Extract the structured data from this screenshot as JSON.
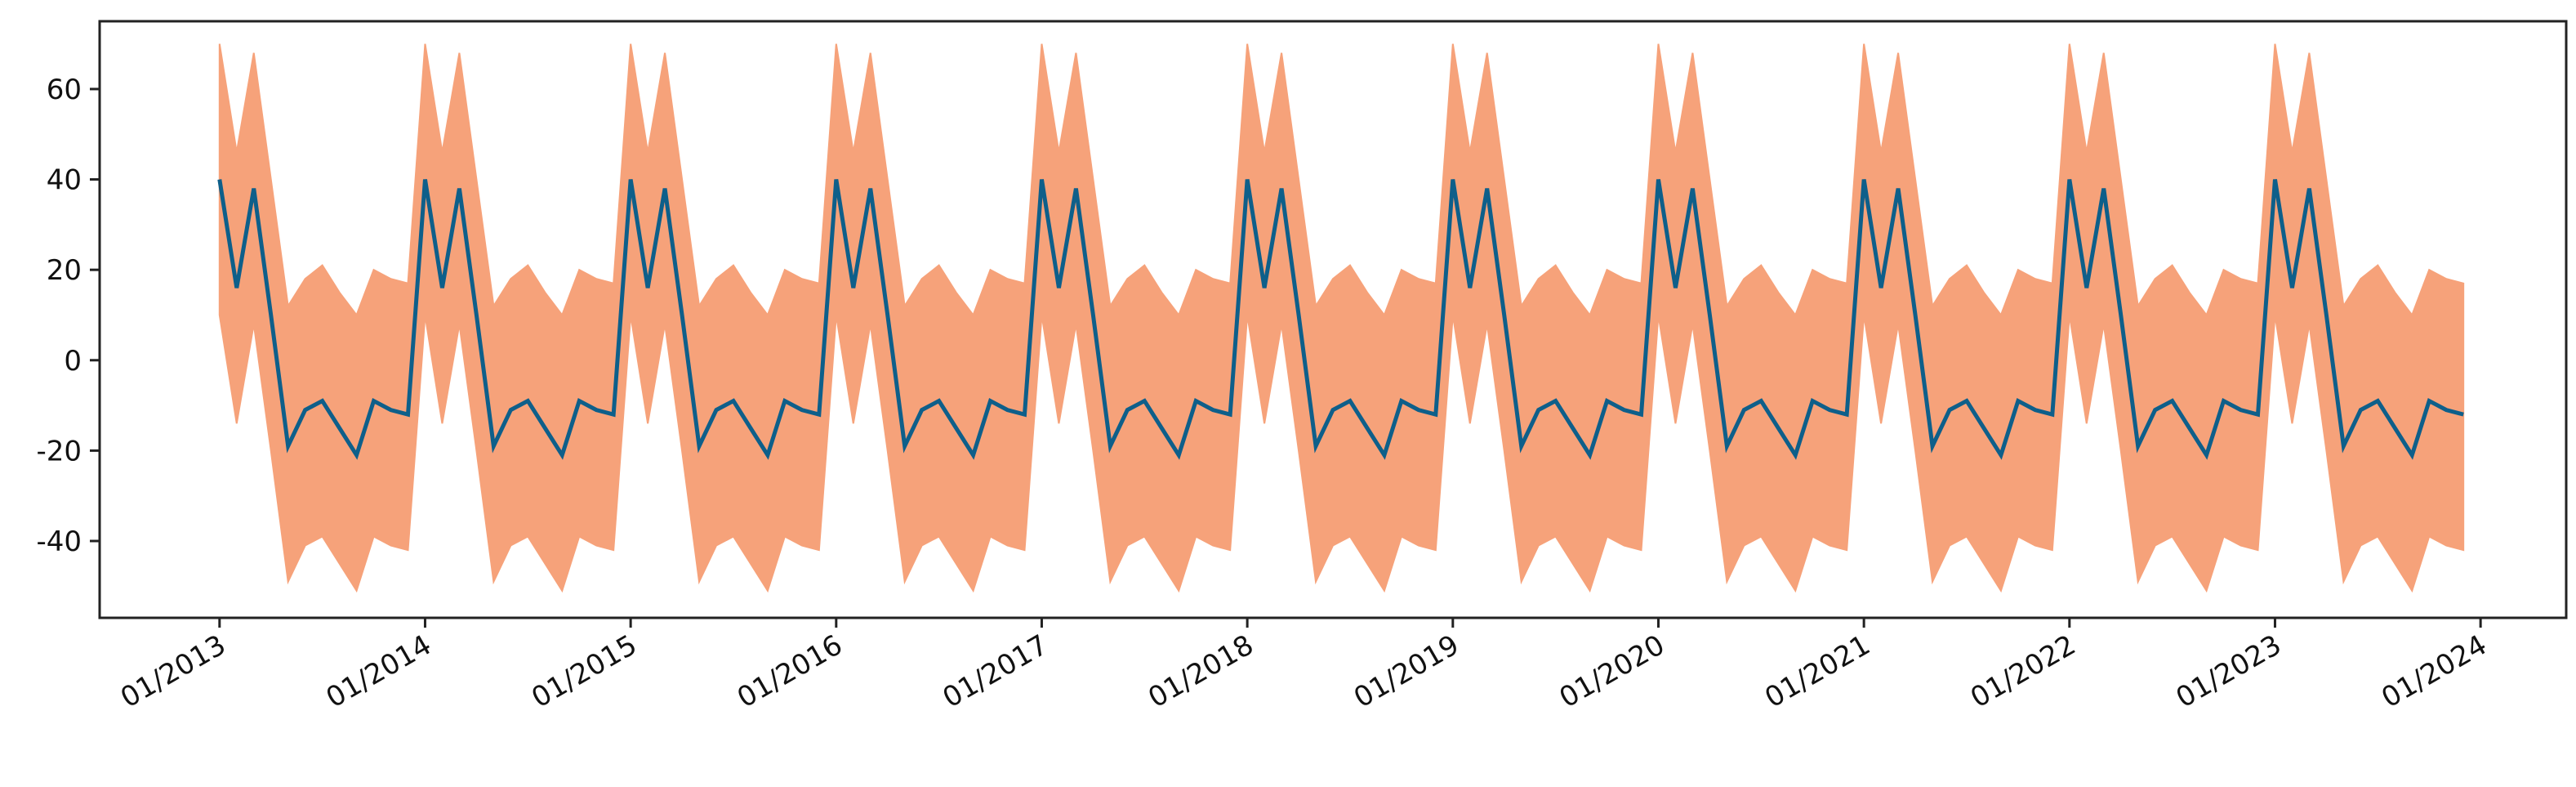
{
  "chart_data": {
    "type": "area",
    "title": "",
    "xlabel": "",
    "ylabel": "",
    "ylim": [
      -57,
      75
    ],
    "y_ticks": [
      60,
      40,
      20,
      0,
      -20,
      -40
    ],
    "x_tick_labels": [
      "01/2013",
      "01/2014",
      "01/2015",
      "01/2016",
      "01/2017",
      "01/2018",
      "01/2019",
      "01/2020",
      "01/2021",
      "01/2022",
      "01/2023",
      "01/2024"
    ],
    "x_range": [
      "2012-06",
      "2024-06"
    ],
    "grid": false,
    "legend": "none",
    "colors": {
      "line": "#0e5f8a",
      "band": "#f6a27a",
      "axis": "#222222"
    },
    "series": [
      {
        "type": "line",
        "x": [
          "2013-01",
          "2013-02",
          "2013-03",
          "2013-04",
          "2013-05",
          "2013-06",
          "2013-07",
          "2013-08",
          "2013-09",
          "2013-10",
          "2013-11",
          "2013-12",
          "2014-01",
          "2014-02",
          "2014-03",
          "2014-04",
          "2014-05",
          "2014-06",
          "2014-07",
          "2014-08",
          "2014-09",
          "2014-10",
          "2014-11",
          "2014-12",
          "2015-01",
          "2015-02",
          "2015-03",
          "2015-04",
          "2015-05",
          "2015-06",
          "2015-07",
          "2015-08",
          "2015-09",
          "2015-10",
          "2015-11",
          "2015-12",
          "2016-01",
          "2016-02",
          "2016-03",
          "2016-04",
          "2016-05",
          "2016-06",
          "2016-07",
          "2016-08",
          "2016-09",
          "2016-10",
          "2016-11",
          "2016-12",
          "2017-01",
          "2017-02",
          "2017-03",
          "2017-04",
          "2017-05",
          "2017-06",
          "2017-07",
          "2017-08",
          "2017-09",
          "2017-10",
          "2017-11",
          "2017-12",
          "2018-01",
          "2018-02",
          "2018-03",
          "2018-04",
          "2018-05",
          "2018-06",
          "2018-07",
          "2018-08",
          "2018-09",
          "2018-10",
          "2018-11",
          "2018-12",
          "2019-01",
          "2019-02",
          "2019-03",
          "2019-04",
          "2019-05",
          "2019-06",
          "2019-07",
          "2019-08",
          "2019-09",
          "2019-10",
          "2019-11",
          "2019-12",
          "2020-01",
          "2020-02",
          "2020-03",
          "2020-04",
          "2020-05",
          "2020-06",
          "2020-07",
          "2020-08",
          "2020-09",
          "2020-10",
          "2020-11",
          "2020-12",
          "2021-01",
          "2021-02",
          "2021-03",
          "2021-04",
          "2021-05",
          "2021-06",
          "2021-07",
          "2021-08",
          "2021-09",
          "2021-10",
          "2021-11",
          "2021-12",
          "2022-01",
          "2022-02",
          "2022-03",
          "2022-04",
          "2022-05",
          "2022-06",
          "2022-07",
          "2022-08",
          "2022-09",
          "2022-10",
          "2022-11",
          "2022-12",
          "2023-01",
          "2023-02",
          "2023-03",
          "2023-04",
          "2023-05",
          "2023-06",
          "2023-07",
          "2023-08",
          "2023-09",
          "2023-10",
          "2023-11",
          "2023-12"
        ],
        "values": [
          40,
          16,
          38,
          10,
          -19,
          -11,
          -9,
          -15,
          -21,
          -9,
          -11,
          -12,
          40,
          16,
          38,
          10,
          -19,
          -11,
          -9,
          -15,
          -21,
          -9,
          -11,
          -12,
          40,
          16,
          38,
          10,
          -19,
          -11,
          -9,
          -15,
          -21,
          -9,
          -11,
          -12,
          40,
          16,
          38,
          10,
          -19,
          -11,
          -9,
          -15,
          -21,
          -9,
          -11,
          -12,
          40,
          16,
          38,
          10,
          -19,
          -11,
          -9,
          -15,
          -21,
          -9,
          -11,
          -12,
          40,
          16,
          38,
          10,
          -19,
          -11,
          -9,
          -15,
          -21,
          -9,
          -11,
          -12,
          40,
          16,
          38,
          10,
          -19,
          -11,
          -9,
          -15,
          -21,
          -9,
          -11,
          -12,
          40,
          16,
          38,
          10,
          -19,
          -11,
          -9,
          -15,
          -21,
          -9,
          -11,
          -12,
          40,
          16,
          38,
          10,
          -19,
          -11,
          -9,
          -15,
          -21,
          -9,
          -11,
          -12,
          40,
          16,
          38,
          10,
          -19,
          -11,
          -9,
          -15,
          -21,
          -9,
          -11,
          -12,
          40,
          16,
          38,
          10,
          -19,
          -11,
          -9,
          -15,
          -21,
          -9,
          -11,
          -12
        ]
      },
      {
        "type": "band",
        "upper": [
          70,
          46,
          68,
          40,
          12,
          18,
          21,
          15,
          10,
          20,
          18,
          17,
          70,
          46,
          68,
          40,
          12,
          18,
          21,
          15,
          10,
          20,
          18,
          17,
          70,
          46,
          68,
          40,
          12,
          18,
          21,
          15,
          10,
          20,
          18,
          17,
          70,
          46,
          68,
          40,
          12,
          18,
          21,
          15,
          10,
          20,
          18,
          17,
          70,
          46,
          68,
          40,
          12,
          18,
          21,
          15,
          10,
          20,
          18,
          17,
          70,
          46,
          68,
          40,
          12,
          18,
          21,
          15,
          10,
          20,
          18,
          17,
          70,
          46,
          68,
          40,
          12,
          18,
          21,
          15,
          10,
          20,
          18,
          17,
          70,
          46,
          68,
          40,
          12,
          18,
          21,
          15,
          10,
          20,
          18,
          17,
          70,
          46,
          68,
          40,
          12,
          18,
          21,
          15,
          10,
          20,
          18,
          17,
          70,
          46,
          68,
          40,
          12,
          18,
          21,
          15,
          10,
          20,
          18,
          17,
          70,
          46,
          68,
          40,
          12,
          18,
          21,
          15,
          10,
          20,
          18,
          17
        ],
        "lower": [
          10,
          -14,
          8,
          -20,
          -49,
          -41,
          -39,
          -45,
          -51,
          -39,
          -41,
          -42,
          10,
          -14,
          8,
          -20,
          -49,
          -41,
          -39,
          -45,
          -51,
          -39,
          -41,
          -42,
          10,
          -14,
          8,
          -20,
          -49,
          -41,
          -39,
          -45,
          -51,
          -39,
          -41,
          -42,
          10,
          -14,
          8,
          -20,
          -49,
          -41,
          -39,
          -45,
          -51,
          -39,
          -41,
          -42,
          10,
          -14,
          8,
          -20,
          -49,
          -41,
          -39,
          -45,
          -51,
          -39,
          -41,
          -42,
          10,
          -14,
          8,
          -20,
          -49,
          -41,
          -39,
          -45,
          -51,
          -39,
          -41,
          -42,
          10,
          -14,
          8,
          -20,
          -49,
          -41,
          -39,
          -45,
          -51,
          -39,
          -41,
          -42,
          10,
          -14,
          8,
          -20,
          -49,
          -41,
          -39,
          -45,
          -51,
          -39,
          -41,
          -42,
          10,
          -14,
          8,
          -20,
          -49,
          -41,
          -39,
          -45,
          -51,
          -39,
          -41,
          -42,
          10,
          -14,
          8,
          -20,
          -49,
          -41,
          -39,
          -45,
          -51,
          -39,
          -41,
          -42,
          10,
          -14,
          8,
          -20,
          -49,
          -41,
          -39,
          -45,
          -51,
          -39,
          -41,
          -42
        ]
      }
    ]
  }
}
